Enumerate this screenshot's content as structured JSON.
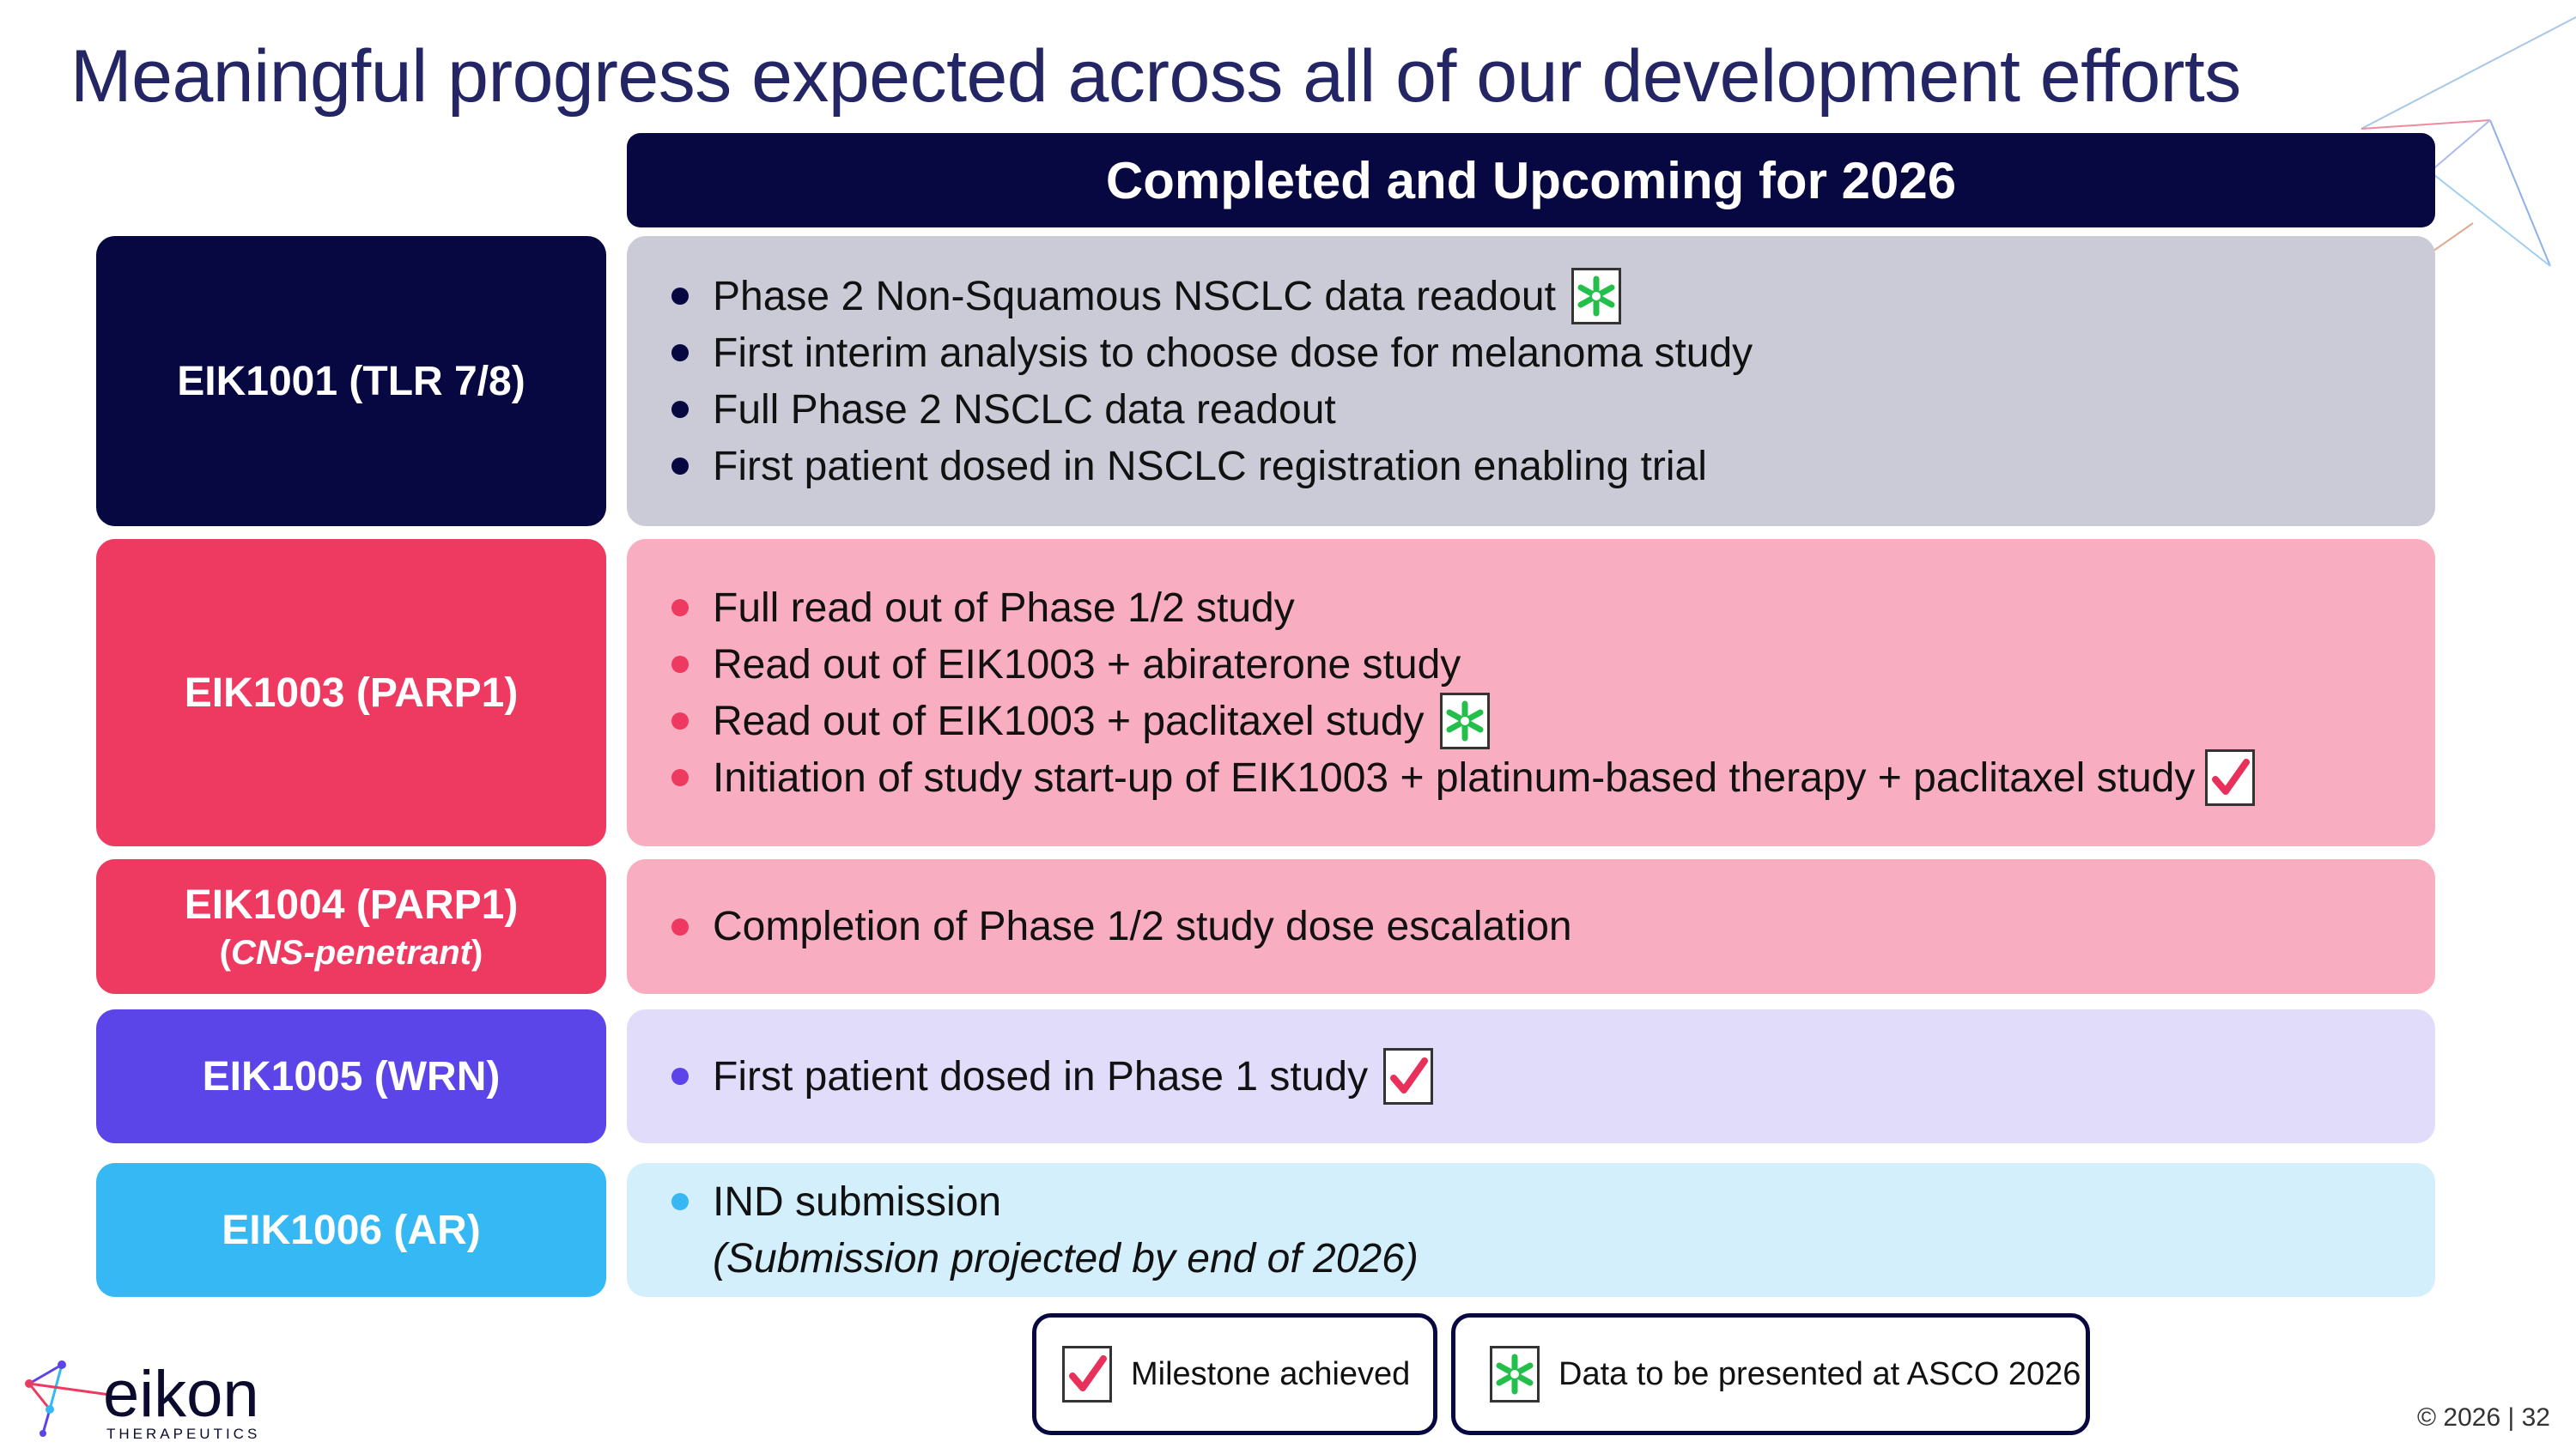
{
  "slide": {
    "title": "Meaningful progress expected across all of our development efforts",
    "header": "Completed and Upcoming for 2026"
  },
  "programs": [
    {
      "label": "EIK1001 (TLR 7/8)",
      "color": "#070741",
      "bg": "#cbcbd8",
      "bullet": "#070741",
      "items": [
        {
          "text": "Phase 2 Non-Squamous NSCLC data readout",
          "badge": "asco-star-icon"
        },
        {
          "text": "First interim analysis to choose dose for melanoma study"
        },
        {
          "text": "Full Phase 2 NSCLC data readout"
        },
        {
          "text": "First patient dosed in NSCLC registration enabling trial"
        }
      ]
    },
    {
      "label": "EIK1003 (PARP1)",
      "color": "#ee3a60",
      "bg": "#f8aec0",
      "bullet": "#ee3a60",
      "items": [
        {
          "text": "Full read out of Phase 1/2 study"
        },
        {
          "text": "Read out of EIK1003 + abiraterone study"
        },
        {
          "text": "Read out of EIK1003 + paclitaxel study",
          "badge": "asco-star-icon"
        },
        {
          "text": "Initiation of study start-up of EIK1003 + platinum-based therapy + paclitaxel study",
          "badge": "checkmark-icon"
        }
      ]
    },
    {
      "label": "EIK1004 (PARP1)",
      "sublabel_open": "(",
      "sublabel_italic": "CNS-penetrant",
      "sublabel_close": ")",
      "color": "#ee3a60",
      "bg": "#f8aec0",
      "bullet": "#ee3a60",
      "items": [
        {
          "text": "Completion of Phase 1/2 study dose escalation"
        }
      ]
    },
    {
      "label": "EIK1005 (WRN)",
      "color": "#5b44e8",
      "bg": "#e0dcfa",
      "bullet": "#5b44e8",
      "items": [
        {
          "text": "First patient dosed in Phase 1 study",
          "badge": "checkmark-icon"
        }
      ]
    },
    {
      "label": "EIK1006 (AR)",
      "color": "#35b8f3",
      "bg": "#d4effc",
      "bullet": "#35b8f3",
      "items": [
        {
          "text": "IND submission",
          "note": "(Submission projected by end of 2026)"
        }
      ]
    }
  ],
  "legend": {
    "milestone_label": "Milestone achieved",
    "asco_label": "Data to be presented at ASCO 2026"
  },
  "logo": {
    "wordmark": "eikon",
    "tagline": "THERAPEUTICS"
  },
  "footer": {
    "copyright": "© 2026",
    "separator": "|",
    "page": "32"
  }
}
